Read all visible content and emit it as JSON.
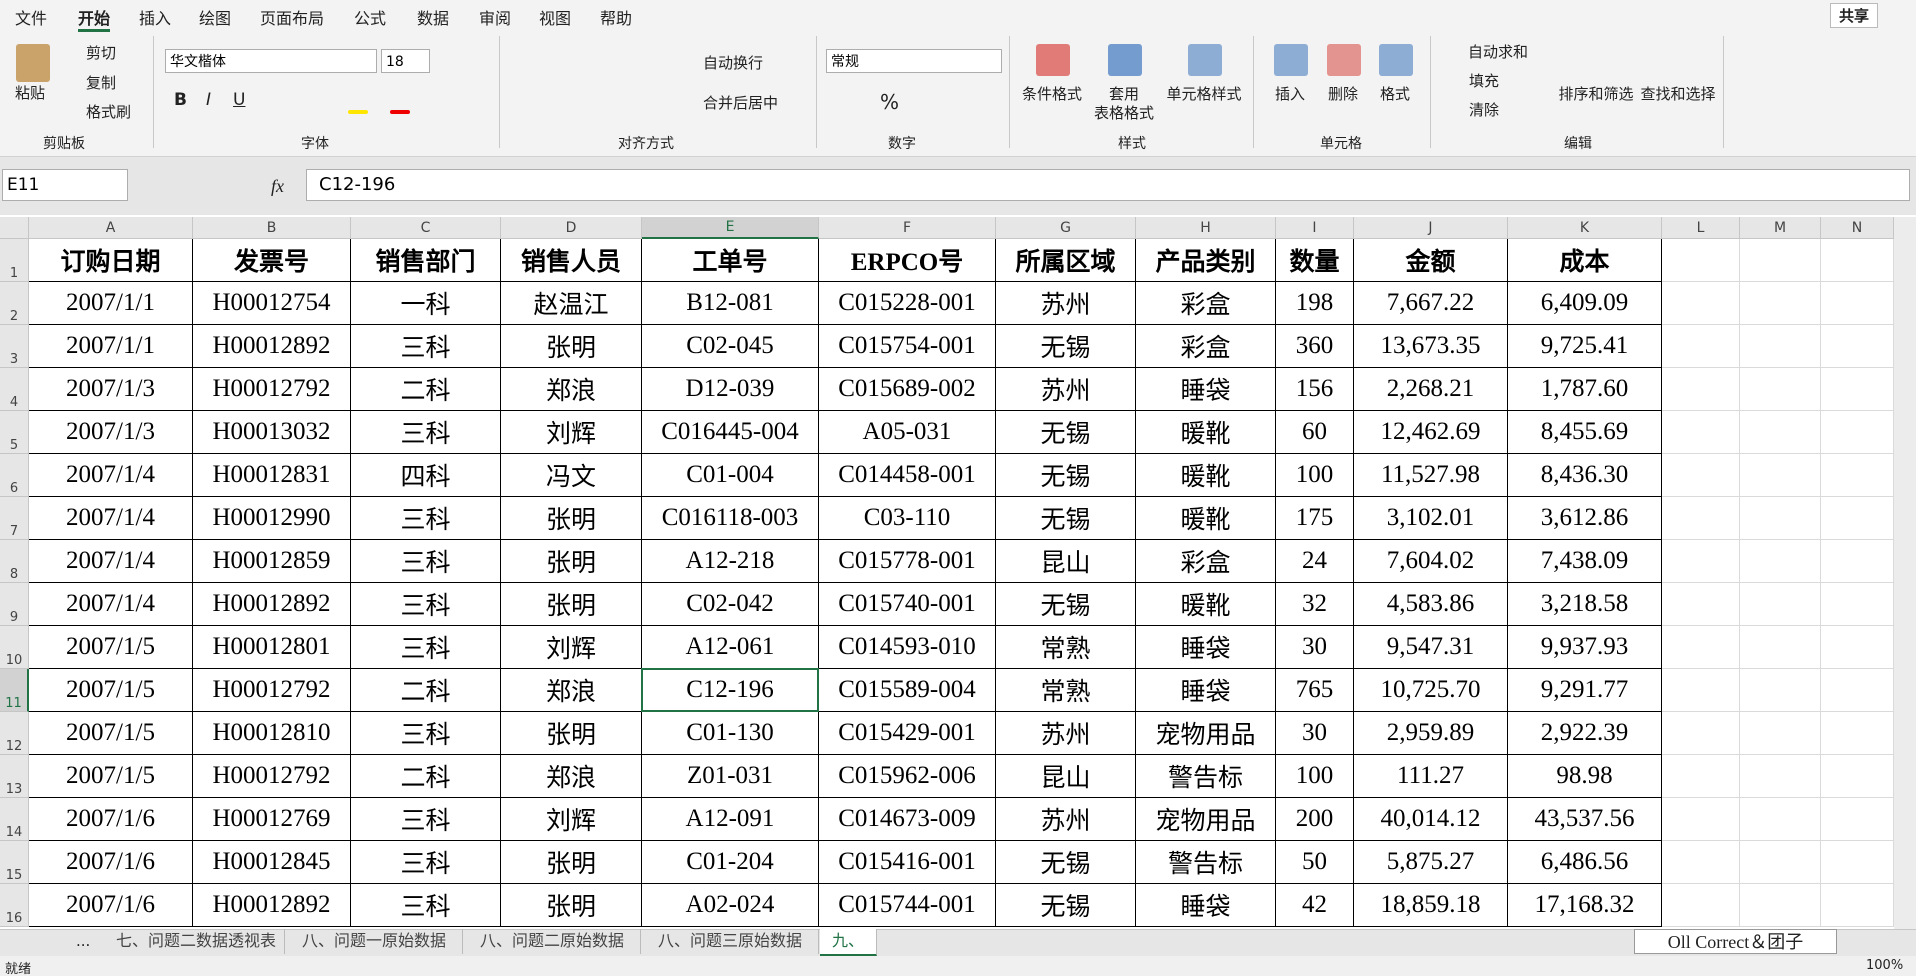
{
  "menu": {
    "tabs": [
      "文件",
      "开始",
      "插入",
      "绘图",
      "页面布局",
      "公式",
      "数据",
      "审阅",
      "视图",
      "帮助"
    ],
    "share": "共享"
  },
  "ribbon": {
    "clipboard": {
      "paste": "粘贴",
      "cut": "剪切",
      "copy": "复制",
      "format_painter": "格式刷",
      "label": "剪贴板"
    },
    "font": {
      "name": "华文楷体",
      "size": "18",
      "bold": "B",
      "italic": "I",
      "underline": "U",
      "label": "字体"
    },
    "alignment": {
      "wrap": "自动换行",
      "merge": "合并后居中",
      "label": "对齐方式"
    },
    "number": {
      "format": "常规",
      "percent": "%",
      "label": "数字"
    },
    "styles": {
      "conditional": "条件格式",
      "table_1": "套用",
      "table_2": "表格格式",
      "cell_styles": "单元格样式",
      "label": "样式"
    },
    "cells": {
      "insert": "插入",
      "delete": "删除",
      "format": "格式",
      "label": "单元格"
    },
    "editing": {
      "autosum": "自动求和",
      "fill": "填充",
      "clear": "清除",
      "sort": "排序和筛选",
      "find": "查找和选择",
      "label": "编辑"
    }
  },
  "formula_bar": {
    "name_box": "E11",
    "fx": "fx",
    "formula": "C12-196"
  },
  "sheet": {
    "columns": [
      "A",
      "B",
      "C",
      "D",
      "E",
      "F",
      "G",
      "H",
      "I",
      "J",
      "K",
      "L",
      "M",
      "N"
    ],
    "row_numbers": [
      "1",
      "2",
      "3",
      "4",
      "5",
      "6",
      "7",
      "8",
      "9",
      "10",
      "11",
      "12",
      "13",
      "14",
      "15",
      "16"
    ],
    "rows": [
      [
        "订购日期",
        "发票号",
        "销售部门",
        "销售人员",
        "工单号",
        "ERPCO号",
        "所属区域",
        "产品类别",
        "数量",
        "金额",
        "成本"
      ],
      [
        "2007/1/1",
        "H00012754",
        "一科",
        "赵温江",
        "B12-081",
        "C015228-001",
        "苏州",
        "彩盒",
        "198",
        "7,667.22",
        "6,409.09"
      ],
      [
        "2007/1/1",
        "H00012892",
        "三科",
        "张明",
        "C02-045",
        "C015754-001",
        "无锡",
        "彩盒",
        "360",
        "13,673.35",
        "9,725.41"
      ],
      [
        "2007/1/3",
        "H00012792",
        "二科",
        "郑浪",
        "D12-039",
        "C015689-002",
        "苏州",
        "睡袋",
        "156",
        "2,268.21",
        "1,787.60"
      ],
      [
        "2007/1/3",
        "H00013032",
        "三科",
        "刘辉",
        "C016445-004",
        "A05-031",
        "无锡",
        "暖靴",
        "60",
        "12,462.69",
        "8,455.69"
      ],
      [
        "2007/1/4",
        "H00012831",
        "四科",
        "冯文",
        "C01-004",
        "C014458-001",
        "无锡",
        "暖靴",
        "100",
        "11,527.98",
        "8,436.30"
      ],
      [
        "2007/1/4",
        "H00012990",
        "三科",
        "张明",
        "C016118-003",
        "C03-110",
        "无锡",
        "暖靴",
        "175",
        "3,102.01",
        "3,612.86"
      ],
      [
        "2007/1/4",
        "H00012859",
        "三科",
        "张明",
        "A12-218",
        "C015778-001",
        "昆山",
        "彩盒",
        "24",
        "7,604.02",
        "7,438.09"
      ],
      [
        "2007/1/4",
        "H00012892",
        "三科",
        "张明",
        "C02-042",
        "C015740-001",
        "无锡",
        "暖靴",
        "32",
        "4,583.86",
        "3,218.58"
      ],
      [
        "2007/1/5",
        "H00012801",
        "三科",
        "刘辉",
        "A12-061",
        "C014593-010",
        "常熟",
        "睡袋",
        "30",
        "9,547.31",
        "9,937.93"
      ],
      [
        "2007/1/5",
        "H00012792",
        "二科",
        "郑浪",
        "C12-196",
        "C015589-004",
        "常熟",
        "睡袋",
        "765",
        "10,725.70",
        "9,291.77"
      ],
      [
        "2007/1/5",
        "H00012810",
        "三科",
        "张明",
        "C01-130",
        "C015429-001",
        "苏州",
        "宠物用品",
        "30",
        "2,959.89",
        "2,922.39"
      ],
      [
        "2007/1/5",
        "H00012792",
        "二科",
        "郑浪",
        "Z01-031",
        "C015962-006",
        "昆山",
        "警告标",
        "100",
        "111.27",
        "98.98"
      ],
      [
        "2007/1/6",
        "H00012769",
        "三科",
        "刘辉",
        "A12-091",
        "C014673-009",
        "苏州",
        "宠物用品",
        "200",
        "40,014.12",
        "43,537.56"
      ],
      [
        "2007/1/6",
        "H00012845",
        "三科",
        "张明",
        "C01-204",
        "C015416-001",
        "无锡",
        "警告标",
        "50",
        "5,875.27",
        "6,486.56"
      ],
      [
        "2007/1/6",
        "H00012892",
        "三科",
        "张明",
        "A02-024",
        "C015744-001",
        "无锡",
        "睡袋",
        "42",
        "18,859.18",
        "17,168.32"
      ]
    ]
  },
  "sheet_tabs": {
    "more": "...",
    "tabs": [
      "七、问题二数据透视表",
      "八、问题一原始数据",
      "八、问题二原始数据",
      "八、问题三原始数据",
      "九、"
    ]
  },
  "status": {
    "ready": "就绪",
    "zoom": "100%"
  },
  "overlay": "Oll Correct＆团子"
}
